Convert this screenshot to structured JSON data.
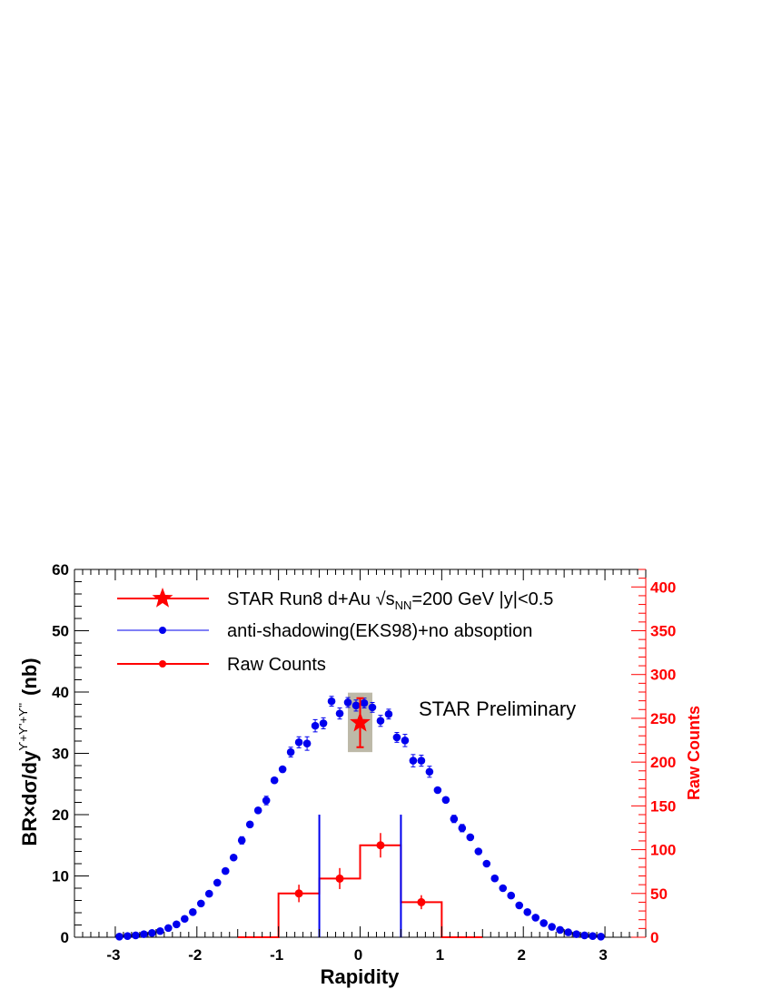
{
  "chart_data": {
    "type": "scatter",
    "xlabel": "Rapidity",
    "ylabel": {
      "main": "BR×dσ/dy",
      "superscript": "ϒ+ϒ'+ϒ''",
      "unit": "(nb)"
    },
    "y2label": "Raw Counts",
    "xlim": [
      -3.5,
      3.5
    ],
    "ylim": [
      0,
      60
    ],
    "y2lim": [
      0,
      420
    ],
    "x_ticks": [
      {
        "value": -3,
        "label": "-3"
      },
      {
        "value": -2,
        "label": "-2"
      },
      {
        "value": -1,
        "label": "-1"
      },
      {
        "value": 0,
        "label": "0"
      },
      {
        "value": 1,
        "label": "1"
      },
      {
        "value": 2,
        "label": "2"
      },
      {
        "value": 3,
        "label": "3"
      }
    ],
    "y_ticks": [
      {
        "value": 0,
        "label": "0"
      },
      {
        "value": 10,
        "label": "10"
      },
      {
        "value": 20,
        "label": "20"
      },
      {
        "value": 30,
        "label": "30"
      },
      {
        "value": 40,
        "label": "40"
      },
      {
        "value": 50,
        "label": "50"
      },
      {
        "value": 60,
        "label": "60"
      }
    ],
    "y2_ticks": [
      {
        "value": 0,
        "label": "0"
      },
      {
        "value": 50,
        "label": "50"
      },
      {
        "value": 100,
        "label": "100"
      },
      {
        "value": 150,
        "label": "150"
      },
      {
        "value": 200,
        "label": "200"
      },
      {
        "value": 250,
        "label": "250"
      },
      {
        "value": 300,
        "label": "300"
      },
      {
        "value": 350,
        "label": "350"
      },
      {
        "value": 400,
        "label": "400"
      }
    ],
    "annotation": "STAR Preliminary",
    "colors": {
      "star": "#ff0000",
      "model": "#0000ee",
      "raw": "#ff0000",
      "syst_box": "#bdb9a8",
      "y2axis": "#ff0000"
    },
    "legend": {
      "placement": "top-left",
      "entries": [
        {
          "key": "star",
          "text": "STAR Run8 d+Au",
          "sqrt_symbol": "√",
          "s_text": "s",
          "s_sub": "NN",
          "rest": "=200 GeV  |y|<0.5"
        },
        {
          "key": "model",
          "text": "anti-shadowing(EKS98)+no absoption"
        },
        {
          "key": "raw",
          "text": "Raw Counts"
        }
      ]
    },
    "series": [
      {
        "key": "model",
        "marker": "circle",
        "x": [
          -2.95,
          -2.85,
          -2.75,
          -2.65,
          -2.55,
          -2.45,
          -2.35,
          -2.25,
          -2.15,
          -2.05,
          -1.95,
          -1.85,
          -1.75,
          -1.65,
          -1.55,
          -1.45,
          -1.35,
          -1.25,
          -1.15,
          -1.05,
          -0.95,
          -0.85,
          -0.75,
          -0.65,
          -0.55,
          -0.45,
          -0.35,
          -0.25,
          -0.15,
          -0.05,
          0.05,
          0.15,
          0.25,
          0.35,
          0.45,
          0.55,
          0.65,
          0.75,
          0.85,
          0.95,
          1.05,
          1.15,
          1.25,
          1.35,
          1.45,
          1.55,
          1.65,
          1.75,
          1.85,
          1.95,
          2.05,
          2.15,
          2.25,
          2.35,
          2.45,
          2.55,
          2.65,
          2.75,
          2.85,
          2.95
        ],
        "y": [
          0.1,
          0.2,
          0.3,
          0.5,
          0.7,
          1.0,
          1.5,
          2.1,
          3.0,
          4.1,
          5.5,
          7.1,
          8.9,
          10.8,
          13.0,
          15.8,
          18.4,
          20.7,
          22.3,
          25.6,
          27.4,
          30.2,
          31.8,
          31.6,
          34.5,
          34.9,
          38.5,
          36.5,
          38.3,
          37.8,
          38.2,
          37.5,
          35.3,
          36.4,
          32.6,
          32.1,
          28.8,
          28.8,
          27.0,
          24.0,
          22.4,
          19.3,
          17.8,
          16.3,
          14.0,
          12.0,
          9.6,
          8.0,
          6.8,
          5.2,
          4.1,
          3.2,
          2.3,
          1.7,
          1.2,
          0.8,
          0.5,
          0.3,
          0.2,
          0.1
        ],
        "yerr": [
          0,
          0,
          0,
          0,
          0,
          0,
          0,
          0,
          0,
          0,
          0,
          0,
          0,
          0,
          0,
          0.6,
          0,
          0,
          0.7,
          0,
          0,
          0.8,
          0.9,
          1.1,
          1.0,
          0.9,
          0.8,
          0.9,
          0.8,
          0.9,
          0.8,
          0.8,
          0.9,
          0.8,
          0.8,
          1.0,
          1.0,
          0.9,
          0.9,
          0,
          0,
          0.6,
          0.6,
          0,
          0,
          0,
          0,
          0,
          0,
          0,
          0,
          0,
          0,
          0,
          0,
          0,
          0,
          0,
          0,
          0
        ]
      },
      {
        "key": "star",
        "marker": "star",
        "x": [
          0
        ],
        "y": [
          35.0
        ],
        "yerr": [
          4.0
        ],
        "xerr": [
          0.05
        ],
        "syst_box": {
          "x": [
            -0.15,
            0.15
          ],
          "y": [
            30.2,
            39.9
          ]
        }
      },
      {
        "key": "raw",
        "marker": "histogram",
        "axis": "y2",
        "bin_edges": [
          -1.5,
          -1.0,
          -0.5,
          0,
          0.5,
          1.0,
          1.5
        ],
        "values": [
          0,
          50,
          67,
          105,
          40,
          0
        ],
        "points": [
          {
            "x": -0.75,
            "y": 50,
            "yerr": 10
          },
          {
            "x": -0.25,
            "y": 67,
            "yerr": 12
          },
          {
            "x": 0.25,
            "y": 105,
            "yerr": 14
          },
          {
            "x": 0.75,
            "y": 40,
            "yerr": 8
          }
        ]
      }
    ],
    "vertical_lines": {
      "key": "model",
      "x": [
        -0.5,
        0.5
      ],
      "y_top": 20
    }
  }
}
